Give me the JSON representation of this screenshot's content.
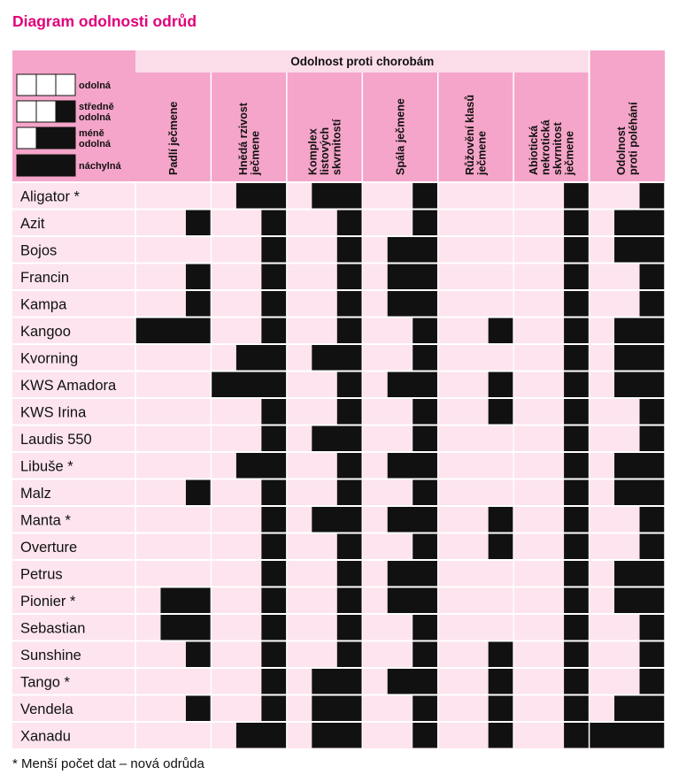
{
  "title": "Diagram odolnosti odrůd",
  "footnote": "* Menší počet dat – nová odrůda",
  "colors": {
    "title": "#e0007a",
    "header": "#f5a5c9",
    "header_band": "#fbdce9",
    "row_band": "#fde4ee",
    "filled": "#111111"
  },
  "chart_data": {
    "type": "table",
    "header_group": "Odolnost proti chorobám",
    "columns": [
      "Padlí ječmene",
      "Hnědá rzivost ječmene",
      "Komplex listových skvrnitostí",
      "Spála ječmene",
      "Růžovění klasů ječmene",
      "Abiotická nekrotická skvrnitost ječmene",
      "Odolnost proti poléhání"
    ],
    "column_lines": [
      [
        "Padlí ječmene"
      ],
      [
        "Hnědá rzivost",
        "ječmene"
      ],
      [
        "Komplex",
        "listových",
        "skvrnitostí"
      ],
      [
        "Spála ječmene"
      ],
      [
        "Růžovění klasů",
        "ječmene"
      ],
      [
        "Abiotická",
        "nekrotická",
        "skvrnitost",
        "ječmene"
      ],
      [
        "Odolnost",
        "proti poléhání"
      ]
    ],
    "legend": [
      {
        "label_lines": [
          "odolná"
        ],
        "filled": 0
      },
      {
        "label_lines": [
          "středně",
          "odolná"
        ],
        "filled": 1
      },
      {
        "label_lines": [
          "méně",
          "odolná"
        ],
        "filled": 2
      },
      {
        "label_lines": [
          "náchylná"
        ],
        "filled": 3
      }
    ],
    "filled_scale": "počet černých dílků ze 3 (0 = odolná, 3 = náchylná)",
    "rows": [
      {
        "name": "Aligator *",
        "values": [
          0,
          2,
          2,
          1,
          0,
          1,
          1
        ]
      },
      {
        "name": "Azit",
        "values": [
          1,
          1,
          1,
          1,
          0,
          1,
          2
        ]
      },
      {
        "name": "Bojos",
        "values": [
          0,
          1,
          1,
          2,
          0,
          1,
          2
        ]
      },
      {
        "name": "Francin",
        "values": [
          1,
          1,
          1,
          2,
          0,
          1,
          1
        ]
      },
      {
        "name": "Kampa",
        "values": [
          1,
          1,
          1,
          2,
          0,
          1,
          1
        ]
      },
      {
        "name": "Kangoo",
        "values": [
          3,
          1,
          1,
          1,
          1,
          1,
          2
        ]
      },
      {
        "name": "Kvorning",
        "values": [
          0,
          2,
          2,
          1,
          0,
          1,
          2
        ]
      },
      {
        "name": "KWS Amadora",
        "values": [
          0,
          3,
          1,
          2,
          1,
          1,
          2
        ]
      },
      {
        "name": "KWS Irina",
        "values": [
          0,
          1,
          1,
          1,
          1,
          1,
          1
        ]
      },
      {
        "name": "Laudis 550",
        "values": [
          0,
          1,
          2,
          1,
          0,
          1,
          1
        ]
      },
      {
        "name": "Libuše *",
        "values": [
          0,
          2,
          1,
          2,
          0,
          1,
          2
        ]
      },
      {
        "name": "Malz",
        "values": [
          1,
          1,
          1,
          1,
          0,
          1,
          2
        ]
      },
      {
        "name": "Manta *",
        "values": [
          0,
          1,
          2,
          2,
          1,
          1,
          1
        ]
      },
      {
        "name": "Overture",
        "values": [
          0,
          1,
          1,
          1,
          1,
          1,
          1
        ]
      },
      {
        "name": "Petrus",
        "values": [
          0,
          1,
          1,
          2,
          0,
          1,
          2
        ]
      },
      {
        "name": "Pionier *",
        "values": [
          2,
          1,
          1,
          2,
          0,
          1,
          2
        ]
      },
      {
        "name": "Sebastian",
        "values": [
          2,
          1,
          1,
          1,
          0,
          1,
          1
        ]
      },
      {
        "name": "Sunshine",
        "values": [
          1,
          1,
          1,
          1,
          1,
          1,
          1
        ]
      },
      {
        "name": "Tango *",
        "values": [
          0,
          1,
          2,
          2,
          1,
          1,
          1
        ]
      },
      {
        "name": "Vendela",
        "values": [
          1,
          1,
          2,
          1,
          1,
          1,
          2
        ]
      },
      {
        "name": "Xanadu",
        "values": [
          0,
          2,
          2,
          1,
          1,
          1,
          3
        ]
      }
    ]
  }
}
